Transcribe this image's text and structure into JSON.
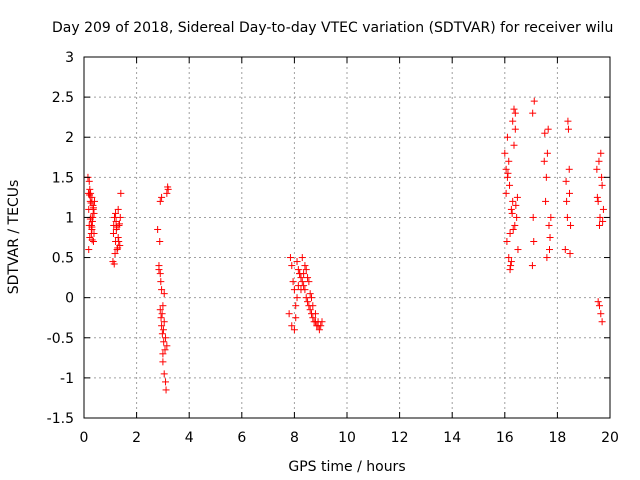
{
  "chart_data": {
    "type": "scatter",
    "title": "Day 209 of 2018, Sidereal Day-to-day VTEC variation (SDTVAR) for receiver wilu",
    "xlabel": "GPS time / hours",
    "ylabel": "SDTVAR / TECUs",
    "xlim": [
      0,
      20
    ],
    "ylim": [
      -1.5,
      3
    ],
    "xticks": [
      0,
      2,
      4,
      6,
      8,
      10,
      12,
      14,
      16,
      18,
      20
    ],
    "xtick_labels": [
      "0",
      "2",
      "4",
      "6",
      "8",
      "10",
      "12",
      "14",
      "16",
      "18",
      "20"
    ],
    "yticks": [
      -1.5,
      -1,
      -0.5,
      0,
      0.5,
      1,
      1.5,
      2,
      2.5,
      3
    ],
    "ytick_labels": [
      "-1.5",
      "-1",
      "-0.5",
      "0",
      "0.5",
      "1",
      "1.5",
      "2",
      "2.5",
      "3"
    ],
    "grid": true,
    "marker": "plus",
    "color": "#ff0000",
    "series": [
      {
        "name": "SDTVAR",
        "x": [
          0.15,
          0.17,
          0.18,
          0.2,
          0.22,
          0.24,
          0.26,
          0.28,
          0.3,
          0.32,
          0.34,
          0.36,
          0.38,
          0.4,
          0.2,
          0.25,
          0.3,
          0.35,
          0.18,
          0.22,
          0.28,
          0.33,
          0.38,
          0.21,
          0.27,
          0.31,
          0.36,
          0.24,
          0.3,
          1.1,
          1.13,
          1.16,
          1.2,
          1.23,
          1.26,
          1.3,
          1.33,
          1.36,
          1.4,
          1.15,
          1.22,
          1.3,
          1.38,
          1.18,
          1.25,
          1.32,
          1.12,
          1.2,
          1.28,
          1.35,
          2.8,
          2.85,
          2.9,
          2.95,
          3.0,
          3.05,
          3.1,
          3.15,
          3.2,
          2.88,
          2.92,
          2.97,
          3.02,
          2.9,
          2.95,
          3.0,
          3.05,
          3.1,
          3.12,
          3.15,
          3.18,
          2.85,
          2.9,
          2.95,
          3.0,
          3.05,
          2.93,
          2.98,
          3.03,
          3.08,
          7.8,
          7.85,
          7.9,
          7.95,
          8.0,
          8.05,
          8.1,
          8.15,
          8.2,
          8.25,
          8.3,
          8.35,
          8.4,
          8.45,
          8.5,
          8.55,
          8.6,
          8.65,
          8.7,
          8.75,
          8.8,
          8.85,
          8.9,
          8.95,
          9.0,
          9.05,
          7.9,
          8.0,
          8.1,
          8.2,
          8.3,
          8.4,
          8.5,
          8.6,
          8.7,
          8.8,
          8.9,
          8.05,
          8.15,
          8.25,
          8.35,
          8.45,
          8.55,
          8.65,
          16.0,
          16.05,
          16.1,
          16.15,
          16.2,
          16.25,
          16.3,
          16.35,
          16.4,
          16.45,
          16.5,
          16.05,
          16.1,
          16.15,
          16.2,
          16.25,
          16.3,
          16.35,
          16.4,
          16.08,
          16.18,
          16.28,
          16.38,
          16.48,
          16.12,
          16.22,
          16.32,
          16.42,
          17.05,
          17.1,
          17.08,
          17.12,
          17.06,
          17.5,
          17.55,
          17.6,
          17.65,
          17.7,
          17.75,
          17.58,
          17.62,
          17.68,
          17.52,
          17.72,
          18.3,
          18.35,
          18.4,
          18.45,
          18.5,
          18.38,
          18.42,
          18.48,
          18.33,
          18.46,
          19.5,
          19.55,
          19.6,
          19.65,
          19.7,
          19.75,
          19.58,
          19.62,
          19.68,
          19.52,
          19.72,
          19.6,
          19.65,
          19.55,
          19.7
        ],
        "y": [
          1.5,
          1.3,
          1.1,
          0.9,
          0.75,
          1.2,
          1.0,
          0.8,
          1.25,
          0.95,
          1.15,
          0.7,
          1.05,
          1.2,
          1.45,
          1.3,
          0.85,
          1.1,
          0.6,
          1.35,
          0.9,
          1.0,
          0.8,
          1.28,
          1.18,
          0.72,
          1.12,
          0.98,
          0.88,
          0.45,
          0.9,
          1.0,
          0.7,
          0.85,
          0.6,
          1.1,
          0.9,
          0.65,
          1.3,
          0.42,
          0.95,
          0.75,
          1.0,
          0.55,
          0.88,
          0.7,
          0.8,
          1.05,
          0.62,
          0.92,
          0.85,
          0.4,
          0.3,
          0.1,
          -0.1,
          -0.3,
          -0.5,
          -0.6,
          1.35,
          0.7,
          0.2,
          -0.2,
          -0.4,
          1.2,
          1.25,
          -0.8,
          -0.95,
          -1.05,
          -1.15,
          1.3,
          1.38,
          0.35,
          -0.15,
          -0.35,
          -0.7,
          0.05,
          -0.25,
          -0.45,
          -0.55,
          -0.65,
          -0.2,
          0.5,
          0.4,
          0.2,
          0.1,
          -0.1,
          0.45,
          0.35,
          0.3,
          0.25,
          0.2,
          0.15,
          0.1,
          0.0,
          -0.05,
          -0.1,
          -0.15,
          -0.2,
          -0.25,
          -0.3,
          -0.3,
          -0.35,
          -0.35,
          -0.4,
          -0.35,
          -0.3,
          -0.35,
          -0.4,
          0.0,
          0.3,
          0.5,
          0.4,
          0.25,
          0.05,
          -0.1,
          -0.2,
          -0.3,
          -0.25,
          0.15,
          0.1,
          0.3,
          0.35,
          0.2,
          0.0,
          1.8,
          1.6,
          1.5,
          0.5,
          0.8,
          1.1,
          2.2,
          2.35,
          2.1,
          1.0,
          0.6,
          1.3,
          2.0,
          1.7,
          0.35,
          0.45,
          1.2,
          1.9,
          2.3,
          0.7,
          1.4,
          1.05,
          0.9,
          1.25,
          1.55,
          0.4,
          0.85,
          1.15,
          0.4,
          0.7,
          1.0,
          2.45,
          2.3,
          1.7,
          1.2,
          0.5,
          2.1,
          0.6,
          1.0,
          1.5,
          1.8,
          0.9,
          2.05,
          0.75,
          0.6,
          1.2,
          2.2,
          1.6,
          0.9,
          1.0,
          2.1,
          0.55,
          1.45,
          1.3,
          1.6,
          1.2,
          0.9,
          1.8,
          1.4,
          1.1,
          1.7,
          1.0,
          1.5,
          1.25,
          0.95,
          -0.1,
          -0.2,
          -0.05,
          -0.3
        ]
      }
    ]
  }
}
